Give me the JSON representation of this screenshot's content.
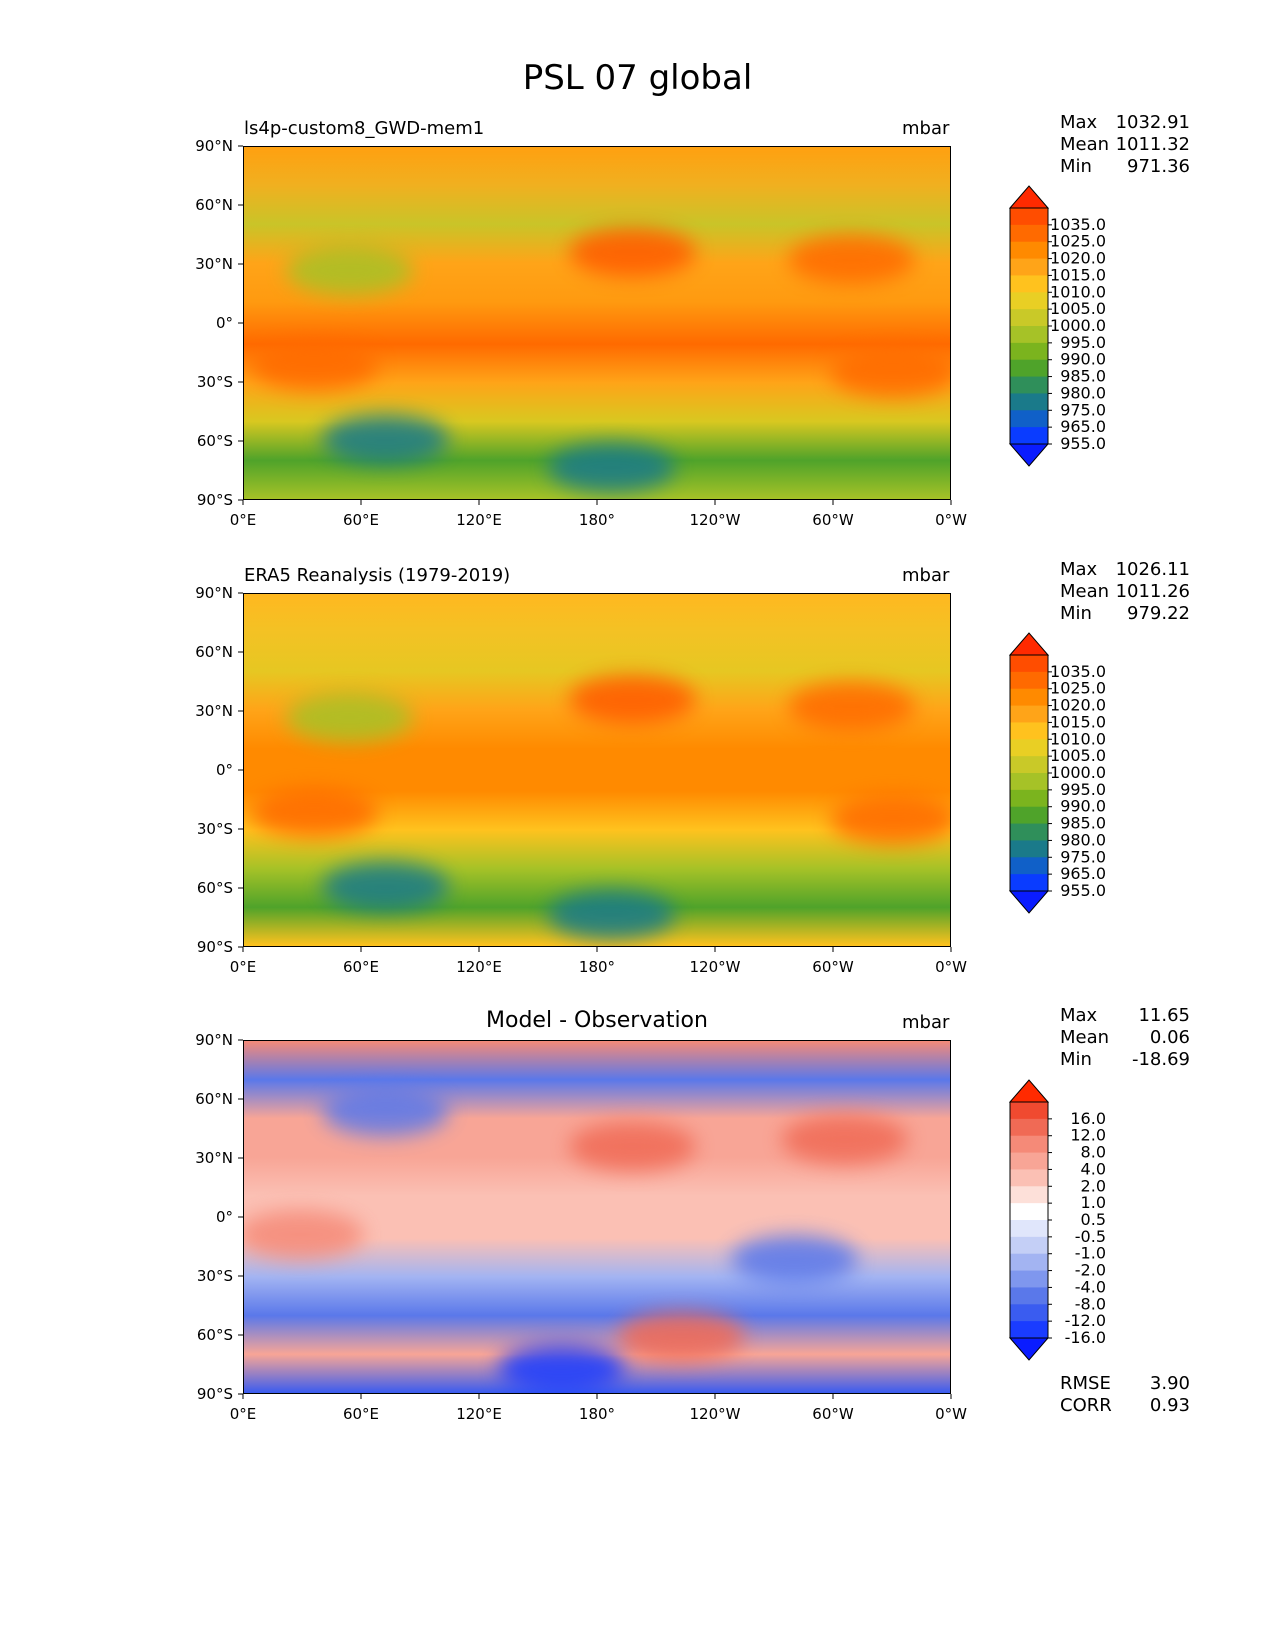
{
  "figure_title": "PSL 07 global",
  "chart_data": [
    {
      "type": "heatmap",
      "title": "ls4p-custom8_GWD-mem1",
      "units": "mbar",
      "variable": "PSL",
      "stats": [
        {
          "k": "Max",
          "v": "1032.91"
        },
        {
          "k": "Mean",
          "v": "1011.32"
        },
        {
          "k": "Min",
          "v": "971.36"
        }
      ],
      "xticks": [
        "0°E",
        "60°E",
        "120°E",
        "180°",
        "120°W",
        "60°W",
        "0°W"
      ],
      "yticks": [
        "90°N",
        "60°N",
        "30°N",
        "0°",
        "30°S",
        "60°S",
        "90°S"
      ],
      "xlim": [
        0,
        360
      ],
      "ylim": [
        -90,
        90
      ],
      "colorbar_levels": [
        "1035.0",
        "1025.0",
        "1020.0",
        "1015.0",
        "1010.0",
        "1005.0",
        "1000.0",
        "995.0",
        "990.0",
        "985.0",
        "980.0",
        "975.0",
        "965.0",
        "955.0"
      ],
      "colorbar_colors": [
        "#ff2a00",
        "#ff4d00",
        "#ff6a00",
        "#ff8a00",
        "#ffa418",
        "#ffc21e",
        "#e9cf24",
        "#c9c928",
        "#a6c227",
        "#7bb41e",
        "#4fa32a",
        "#2f8f5a",
        "#1a7a8a",
        "#1060c8",
        "#0a3cff",
        "#0a1cff"
      ]
    },
    {
      "type": "heatmap",
      "title": "ERA5 Reanalysis (1979-2019)",
      "units": "mbar",
      "variable": "PSL",
      "stats": [
        {
          "k": "Max",
          "v": "1026.11"
        },
        {
          "k": "Mean",
          "v": "1011.26"
        },
        {
          "k": "Min",
          "v": "979.22"
        }
      ],
      "xticks": [
        "0°E",
        "60°E",
        "120°E",
        "180°",
        "120°W",
        "60°W",
        "0°W"
      ],
      "yticks": [
        "90°N",
        "60°N",
        "30°N",
        "0°",
        "30°S",
        "60°S",
        "90°S"
      ],
      "xlim": [
        0,
        360
      ],
      "ylim": [
        -90,
        90
      ],
      "colorbar_levels": [
        "1035.0",
        "1025.0",
        "1020.0",
        "1015.0",
        "1010.0",
        "1005.0",
        "1000.0",
        "995.0",
        "990.0",
        "985.0",
        "980.0",
        "975.0",
        "965.0",
        "955.0"
      ],
      "colorbar_colors": [
        "#ff2a00",
        "#ff4d00",
        "#ff6a00",
        "#ff8a00",
        "#ffa418",
        "#ffc21e",
        "#e9cf24",
        "#c9c928",
        "#a6c227",
        "#7bb41e",
        "#4fa32a",
        "#2f8f5a",
        "#1a7a8a",
        "#1060c8",
        "#0a3cff",
        "#0a1cff"
      ]
    },
    {
      "type": "heatmap",
      "title": "Model - Observation",
      "units": "mbar",
      "variable": "PSL difference",
      "stats": [
        {
          "k": "Max",
          "v": "11.65"
        },
        {
          "k": "Mean",
          "v": "0.06"
        },
        {
          "k": "Min",
          "v": "-18.69"
        }
      ],
      "extra_stats": [
        {
          "k": "RMSE",
          "v": "3.90"
        },
        {
          "k": "CORR",
          "v": "0.93"
        }
      ],
      "xticks": [
        "0°E",
        "60°E",
        "120°E",
        "180°",
        "120°W",
        "60°W",
        "0°W"
      ],
      "yticks": [
        "90°N",
        "60°N",
        "30°N",
        "0°",
        "30°S",
        "60°S",
        "90°S"
      ],
      "xlim": [
        0,
        360
      ],
      "ylim": [
        -90,
        90
      ],
      "colorbar_levels": [
        "16.0",
        "12.0",
        "8.0",
        "4.0",
        "2.0",
        "1.0",
        "0.5",
        "-0.5",
        "-1.0",
        "-2.0",
        "-4.0",
        "-8.0",
        "-12.0",
        "-16.0"
      ],
      "colorbar_colors": [
        "#ff2a00",
        "#f04a30",
        "#f06a55",
        "#f58a78",
        "#f8a596",
        "#fbc0b4",
        "#fde0d9",
        "#ffffff",
        "#e0e6fb",
        "#c4cff6",
        "#a3b4f2",
        "#7f97ee",
        "#5a78ea",
        "#3a5cf0",
        "#1a3cff",
        "#0a1cff"
      ]
    }
  ]
}
